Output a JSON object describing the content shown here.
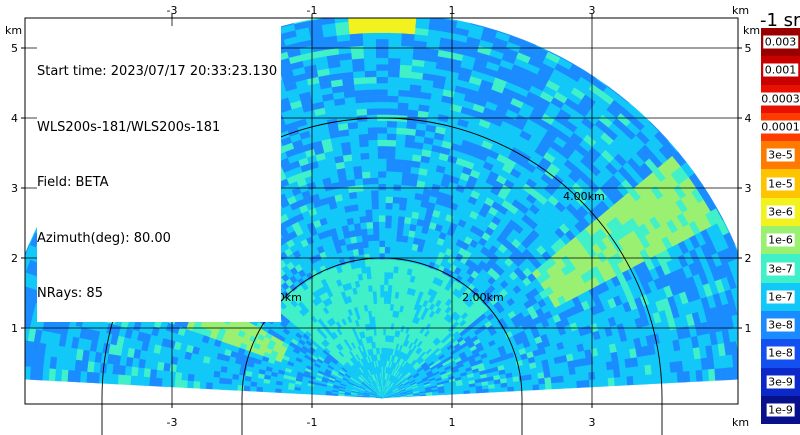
{
  "info": {
    "start_time": "Start time: 2023/07/17 20:33:23.130",
    "instrument": "WLS200s-181/WLS200s-181",
    "field": "Field: BETA",
    "azimuth": "Azimuth(deg): 80.00",
    "nrays": "NRays: 85"
  },
  "chart_data": {
    "type": "heatmap",
    "subtype": "RHI polar sector",
    "x_unit_label": "km",
    "y_unit_label": "km",
    "xlim": [
      -4.4,
      4.9
    ],
    "ylim": [
      -0.05,
      5.8
    ],
    "x_ticks": [
      -3,
      -1,
      1,
      3
    ],
    "y_ticks": [
      1,
      2,
      3,
      4,
      5
    ],
    "max_range_km": 5.5,
    "elevation_range_deg": [
      3,
      177
    ],
    "range_rings": [
      {
        "radius_km": 2,
        "labels": [
          "2.00km",
          "2.00km"
        ]
      },
      {
        "radius_km": 4,
        "labels": [
          "4.00km",
          "4.00km"
        ]
      }
    ],
    "grid": true,
    "colorbar": {
      "title": "-1 sr",
      "placement": "right",
      "labels": [
        "0.003",
        "0.001",
        "0.0003",
        "0.0001",
        "3e-5",
        "1e-5",
        "3e-6",
        "1e-6",
        "3e-7",
        "1e-7",
        "3e-8",
        "1e-8",
        "3e-9",
        "1e-9"
      ],
      "colors": [
        "#9b0000",
        "#c80000",
        "#e81000",
        "#ff3b00",
        "#ff7a00",
        "#ffc400",
        "#f2f21e",
        "#9af070",
        "#40f0c8",
        "#12c8f8",
        "#1a8cff",
        "#1450f0",
        "#0c28c8",
        "#08108c"
      ]
    },
    "field_description": {
      "background_level": "1e-7",
      "features": [
        {
          "kind": "near-field plume",
          "elevation_deg": [
            40,
            140
          ],
          "range_km": [
            0,
            2.0
          ],
          "level": "1e-7"
        },
        {
          "kind": "layer",
          "elevation_deg": [
            28,
            40
          ],
          "range_km": [
            2.8,
            5.4
          ],
          "level": "1e-6"
        },
        {
          "kind": "layer",
          "elevation_deg": [
            150,
            160
          ],
          "range_km": [
            1.5,
            3.0
          ],
          "level": "1e-6"
        },
        {
          "kind": "top cap",
          "elevation_deg": [
            85,
            95
          ],
          "range_km": [
            5.2,
            5.5
          ],
          "level": "3e-6"
        }
      ]
    }
  }
}
